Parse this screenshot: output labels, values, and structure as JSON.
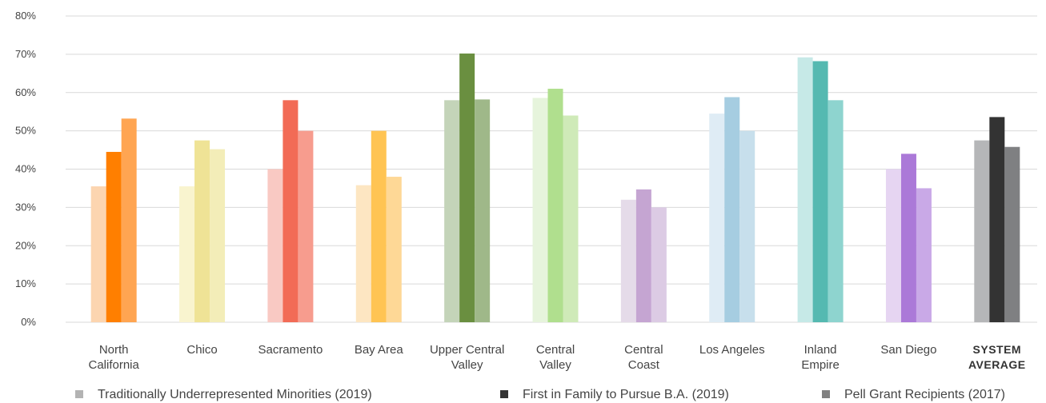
{
  "chart_data": {
    "type": "bar",
    "title": "",
    "xlabel": "",
    "ylabel": "",
    "ylim": [
      0,
      80
    ],
    "y_ticks": [
      "0%",
      "10%",
      "20%",
      "30%",
      "40%",
      "50%",
      "60%",
      "70%",
      "80%"
    ],
    "grid": true,
    "legend_position": "bottom",
    "categories": [
      [
        "North",
        "California"
      ],
      [
        "Chico"
      ],
      [
        "Sacramento"
      ],
      [
        "Bay Area"
      ],
      [
        "Upper Central",
        "Valley"
      ],
      [
        "Central",
        "Valley"
      ],
      [
        "Central",
        "Coast"
      ],
      [
        "Los Angeles"
      ],
      [
        "Inland",
        "Empire"
      ],
      [
        "San Diego"
      ],
      [
        "SYSTEM",
        "AVERAGE"
      ]
    ],
    "series": [
      {
        "name": "Traditionally Underrepresented Minorities (2019)",
        "legend_color": "#b3b3b3",
        "values": [
          35.5,
          35.5,
          40,
          35.8,
          58,
          58.6,
          32,
          54.5,
          69.2,
          40,
          47.5
        ]
      },
      {
        "name": "First in Family to Pursue B.A. (2019)",
        "legend_color": "#333333",
        "values": [
          44.5,
          47.5,
          58,
          50,
          70.2,
          61,
          34.7,
          58.8,
          68.2,
          44,
          53.6
        ]
      },
      {
        "name": "Pell Grant Recipients (2017)",
        "legend_color": "#808080",
        "values": [
          53.2,
          45.2,
          50,
          38,
          58.2,
          54,
          30,
          50,
          58,
          35,
          45.8
        ]
      }
    ],
    "category_colors": [
      [
        "#fcd5b0",
        "#ff7f00",
        "#ffa552"
      ],
      [
        "#f9f4cf",
        "#efe396",
        "#f3edb8"
      ],
      [
        "#f9c9c3",
        "#f26b56",
        "#f79c8e"
      ],
      [
        "#fde6c2",
        "#ffc453",
        "#fed896"
      ],
      [
        "#c4d4b9",
        "#6a8f40",
        "#9fb889"
      ],
      [
        "#e6f4dc",
        "#b0df8e",
        "#cfeab8"
      ],
      [
        "#e5dbe9",
        "#c5a5d2",
        "#dccbe4"
      ],
      [
        "#dfecf5",
        "#a6cde1",
        "#c7dfec"
      ],
      [
        "#c6e9e7",
        "#55b9b1",
        "#8ed4cf"
      ],
      [
        "#e6d5f2",
        "#ab79d8",
        "#c9a9e7"
      ],
      [
        "#b5b6b8",
        "#333333",
        "#7f8082"
      ]
    ]
  }
}
